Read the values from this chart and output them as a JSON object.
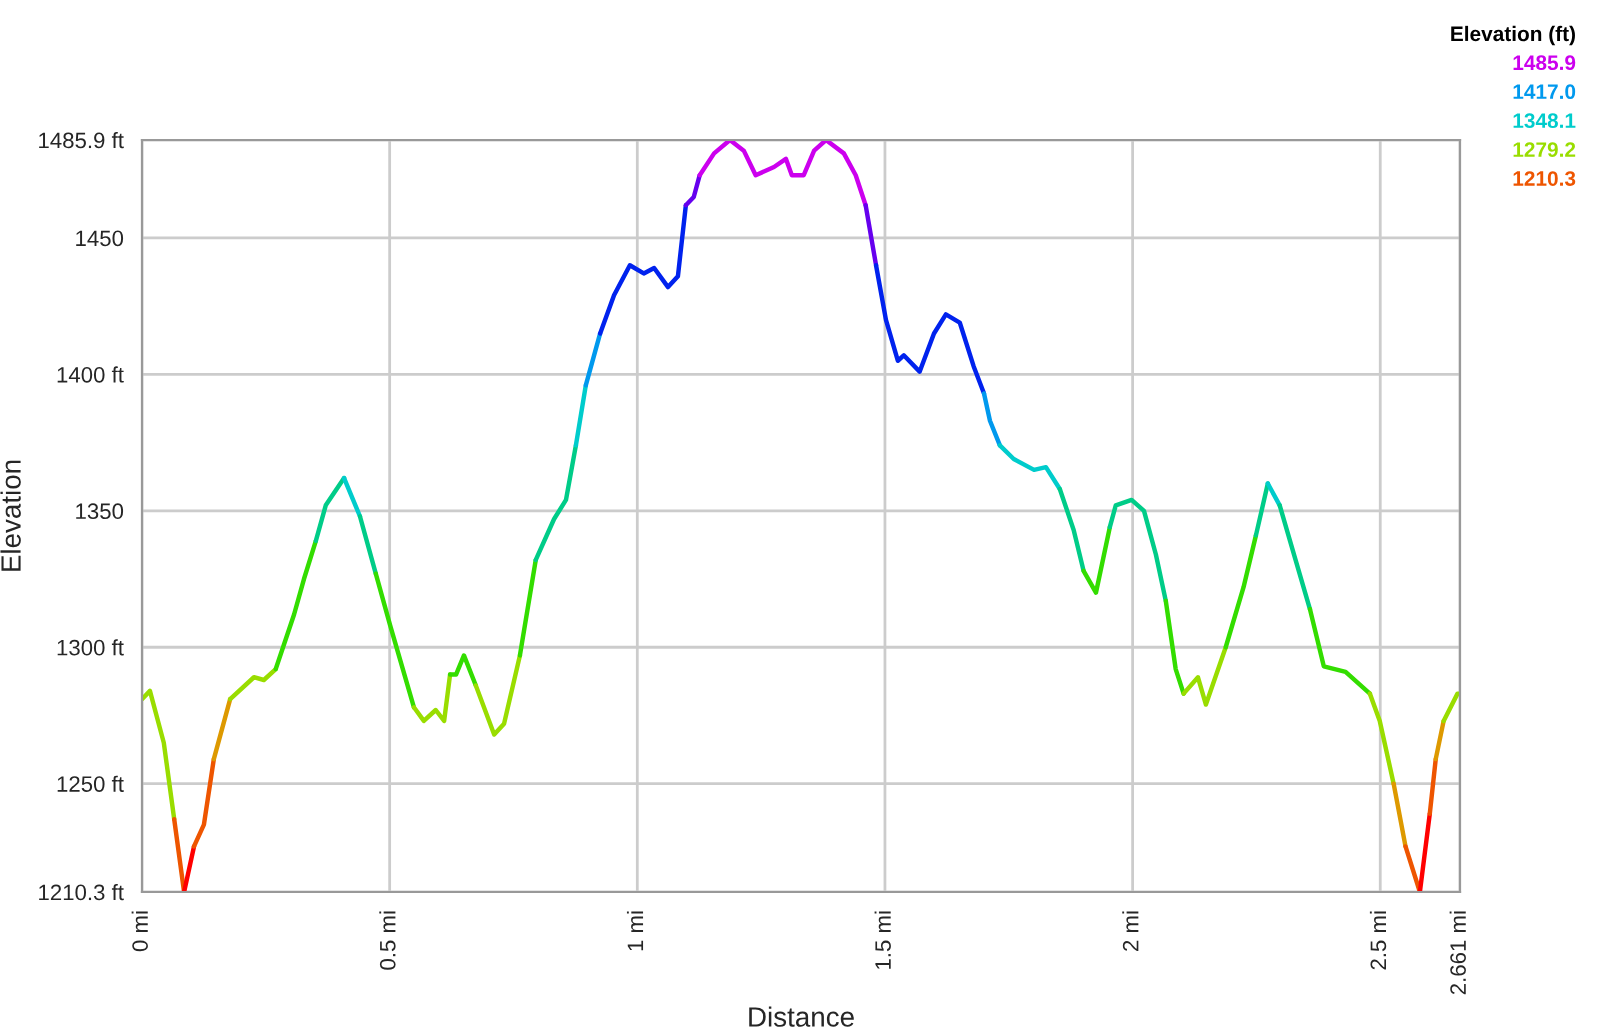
{
  "chart_data": {
    "type": "line",
    "xlabel": "Distance",
    "ylabel": "Elevation",
    "annotations": [
      "Elevation (ft)",
      "1485.9",
      "1417.0",
      "1348.1",
      "1279.2",
      "1210.3"
    ],
    "series": [
      {
        "color": "#99dd00",
        "x": [
          0,
          0.016,
          0.044,
          0.065
        ],
        "values": [
          1281,
          1284,
          1265,
          1237
        ]
      },
      {
        "color": "#ee5500",
        "x": [
          0.065,
          0.085
        ],
        "values": [
          1237,
          1210.3
        ]
      },
      {
        "color": "#ff0000",
        "x": [
          0.085,
          0.105
        ],
        "values": [
          1210.3,
          1227
        ]
      },
      {
        "color": "#ee5500",
        "x": [
          0.105,
          0.125,
          0.145
        ],
        "values": [
          1227,
          1235,
          1259
        ]
      },
      {
        "color": "#dd9900",
        "x": [
          0.145,
          0.178
        ],
        "values": [
          1259,
          1281
        ]
      },
      {
        "color": "#99dd00",
        "x": [
          0.178,
          0.226,
          0.246,
          0.27
        ],
        "values": [
          1281,
          1289,
          1288,
          1292
        ]
      },
      {
        "color": "#33dd00",
        "x": [
          0.27,
          0.307,
          0.327,
          0.351
        ],
        "values": [
          1292,
          1312,
          1325,
          1339
        ]
      },
      {
        "color": "#00cc88",
        "x": [
          0.351,
          0.371,
          0.408
        ],
        "values": [
          1339,
          1352,
          1362
        ]
      },
      {
        "color": "#00cccc",
        "x": [
          0.408,
          0.44
        ],
        "values": [
          1362,
          1348
        ]
      },
      {
        "color": "#00cc88",
        "x": [
          0.44,
          0.472
        ],
        "values": [
          1348,
          1327
        ]
      },
      {
        "color": "#33dd00",
        "x": [
          0.472,
          0.501,
          0.549
        ],
        "values": [
          1327,
          1308,
          1278
        ]
      },
      {
        "color": "#99dd00",
        "x": [
          0.549,
          0.569,
          0.593,
          0.61,
          0.622
        ],
        "values": [
          1278,
          1273,
          1277,
          1273,
          1290
        ]
      },
      {
        "color": "#33dd00",
        "x": [
          0.622,
          0.634,
          0.65,
          0.674
        ],
        "values": [
          1290,
          1290,
          1297,
          1286
        ]
      },
      {
        "color": "#99dd00",
        "x": [
          0.674,
          0.711,
          0.731,
          0.763
        ],
        "values": [
          1286,
          1268,
          1272,
          1297
        ]
      },
      {
        "color": "#33dd00",
        "x": [
          0.763,
          0.795
        ],
        "values": [
          1297,
          1332
        ]
      },
      {
        "color": "#00cc88",
        "x": [
          0.795,
          0.832,
          0.856,
          0.876
        ],
        "values": [
          1332,
          1347,
          1354,
          1374
        ]
      },
      {
        "color": "#00cccc",
        "x": [
          0.876,
          0.896
        ],
        "values": [
          1374,
          1396
        ]
      },
      {
        "color": "#0099ee",
        "x": [
          0.896,
          0.925
        ],
        "values": [
          1396,
          1415
        ]
      },
      {
        "color": "#0022ee",
        "x": [
          0.925,
          0.953,
          0.985,
          1.013,
          1.034,
          1.062,
          1.082,
          1.098
        ],
        "values": [
          1415,
          1429,
          1440,
          1437,
          1439,
          1432,
          1436,
          1462
        ]
      },
      {
        "color": "#6600ee",
        "x": [
          1.098,
          1.114,
          1.126
        ],
        "values": [
          1462,
          1465,
          1473
        ]
      },
      {
        "color": "#cc00ee",
        "x": [
          1.126,
          1.155,
          1.187,
          1.215,
          1.239,
          1.276,
          1.3,
          1.312,
          1.336,
          1.357,
          1.381,
          1.417,
          1.441,
          1.461
        ],
        "values": [
          1473,
          1481,
          1485.9,
          1482,
          1473,
          1476,
          1479,
          1473,
          1473,
          1482,
          1485.9,
          1481,
          1473,
          1462
        ]
      },
      {
        "color": "#6600ee",
        "x": [
          1.461,
          1.482
        ],
        "values": [
          1462,
          1440
        ]
      },
      {
        "color": "#0022ee",
        "x": [
          1.482,
          1.502,
          1.526,
          1.538,
          1.57,
          1.599,
          1.623,
          1.651,
          1.679,
          1.7
        ],
        "values": [
          1440,
          1420,
          1405,
          1407,
          1401,
          1415,
          1422,
          1419,
          1403,
          1393
        ]
      },
      {
        "color": "#0099ee",
        "x": [
          1.7,
          1.712,
          1.732
        ],
        "values": [
          1393,
          1383,
          1374
        ]
      },
      {
        "color": "#00cccc",
        "x": [
          1.732,
          1.76,
          1.801,
          1.825,
          1.853
        ],
        "values": [
          1374,
          1369,
          1365,
          1366,
          1358
        ]
      },
      {
        "color": "#00cc88",
        "x": [
          1.853,
          1.881,
          1.901
        ],
        "values": [
          1358,
          1343,
          1328
        ]
      },
      {
        "color": "#33dd00",
        "x": [
          1.901,
          1.926,
          1.954
        ],
        "values": [
          1328,
          1320,
          1344
        ]
      },
      {
        "color": "#00cc88",
        "x": [
          1.954,
          1.966,
          1.998,
          2.023,
          2.047,
          2.067
        ],
        "values": [
          1344,
          1352,
          1354,
          1350,
          1334,
          1317
        ]
      },
      {
        "color": "#33dd00",
        "x": [
          2.067,
          2.087,
          2.103
        ],
        "values": [
          1317,
          1292,
          1283
        ]
      },
      {
        "color": "#99dd00",
        "x": [
          2.103,
          2.132,
          2.148,
          2.188
        ],
        "values": [
          1283,
          1289,
          1279,
          1300
        ]
      },
      {
        "color": "#33dd00",
        "x": [
          2.188,
          2.224,
          2.249
        ],
        "values": [
          1300,
          1322,
          1341
        ]
      },
      {
        "color": "#00cc88",
        "x": [
          2.249,
          2.273
        ],
        "values": [
          1341,
          1360
        ]
      },
      {
        "color": "#00cccc",
        "x": [
          2.273,
          2.297
        ],
        "values": [
          1360,
          1352
        ]
      },
      {
        "color": "#00cc88",
        "x": [
          2.297,
          2.329,
          2.358
        ],
        "values": [
          1352,
          1332,
          1314
        ]
      },
      {
        "color": "#33dd00",
        "x": [
          2.358,
          2.386,
          2.43,
          2.479
        ],
        "values": [
          1314,
          1293,
          1291,
          1283
        ]
      },
      {
        "color": "#99dd00",
        "x": [
          2.479,
          2.499,
          2.527
        ],
        "values": [
          1283,
          1273,
          1250
        ]
      },
      {
        "color": "#dd9900",
        "x": [
          2.527,
          2.551
        ],
        "values": [
          1250,
          1227
        ]
      },
      {
        "color": "#ee5500",
        "x": [
          2.551,
          2.58
        ],
        "values": [
          1227,
          1210.3
        ]
      },
      {
        "color": "#ff0000",
        "x": [
          2.58,
          2.6
        ],
        "values": [
          1210.3,
          1239
        ]
      },
      {
        "color": "#ee5500",
        "x": [
          2.6,
          2.612
        ],
        "values": [
          1239,
          1259
        ]
      },
      {
        "color": "#dd9900",
        "x": [
          2.612,
          2.628
        ],
        "values": [
          1259,
          1273
        ]
      },
      {
        "color": "#99dd00",
        "x": [
          2.628,
          2.656,
          2.661
        ],
        "values": [
          1273,
          1283,
          1283
        ]
      }
    ],
    "xlim": [
      0,
      2.661
    ],
    "xticks": [
      {
        "value": 0,
        "label": "0 mi"
      },
      {
        "value": 0.5,
        "label": "0.5 mi"
      },
      {
        "value": 1,
        "label": "1 mi"
      },
      {
        "value": 1.5,
        "label": "1.5 mi"
      },
      {
        "value": 2,
        "label": "2 mi"
      },
      {
        "value": 2.5,
        "label": "2.5 mi"
      },
      {
        "value": 2.661,
        "label": "2.661 mi"
      }
    ],
    "ylim": [
      1210.3,
      1485.9
    ],
    "yticks": [
      {
        "value": 1210.3,
        "label": "1210.3 ft"
      },
      {
        "value": 1250,
        "label": "1250 ft"
      },
      {
        "value": 1300,
        "label": "1300 ft"
      },
      1350,
      {
        "value": 1400,
        "label": "1400 ft"
      },
      1450,
      {
        "value": 1485.9,
        "label": "1485.9 ft"
      }
    ],
    "grid": true
  }
}
